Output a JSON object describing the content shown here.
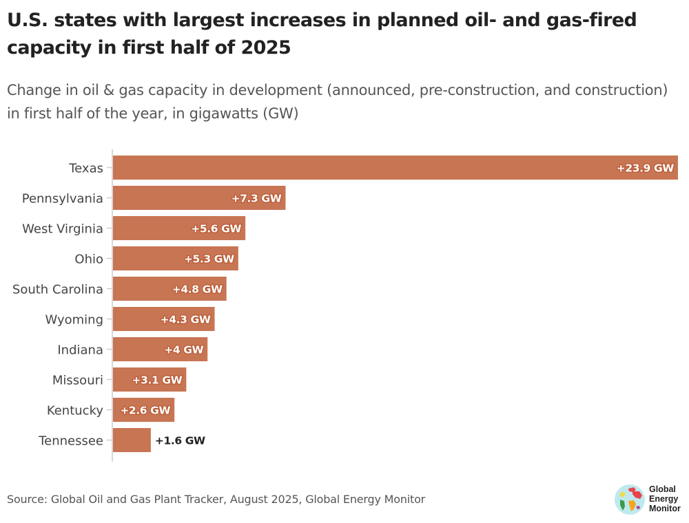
{
  "title": "U.S. states with largest increases in planned oil- and gas-fired capacity in first half of 2025",
  "subtitle": "Change in oil & gas capacity in development (announced, pre-construction, and construction) in first half of the year, in gigawatts (GW)",
  "source": "Source: Global Oil and Gas Plant Tracker, August 2025, Global Energy Monitor",
  "logo": {
    "lines": [
      "Global",
      "Energy",
      "Monitor"
    ],
    "icon": "globe-icon"
  },
  "colors": {
    "bar": "#c87553",
    "label_inside": "#ffffff",
    "label_outside": "#222222",
    "axis_text": "#444444",
    "axis_line": "#cccccc"
  },
  "chart_data": {
    "type": "bar",
    "orientation": "horizontal",
    "title": "U.S. states with largest increases in planned oil- and gas-fired capacity in first half of 2025",
    "subtitle": "Change in oil & gas capacity in development (announced, pre-construction, and construction) in first half of the year, in gigawatts (GW)",
    "xlabel": "",
    "ylabel": "",
    "unit": "GW",
    "xlim": [
      0,
      23.9
    ],
    "grid": false,
    "legend": "none",
    "categories": [
      "Texas",
      "Pennsylvania",
      "West Virginia",
      "Ohio",
      "South Carolina",
      "Wyoming",
      "Indiana",
      "Missouri",
      "Kentucky",
      "Tennessee"
    ],
    "values": [
      23.9,
      7.3,
      5.6,
      5.3,
      4.8,
      4.3,
      4,
      3.1,
      2.6,
      1.6
    ],
    "data_labels": [
      "+23.9 GW",
      "+7.3 GW",
      "+5.6 GW",
      "+5.3 GW",
      "+4.8 GW",
      "+4.3 GW",
      "+4 GW",
      "+3.1 GW",
      "+2.6 GW",
      "+1.6 GW"
    ]
  }
}
